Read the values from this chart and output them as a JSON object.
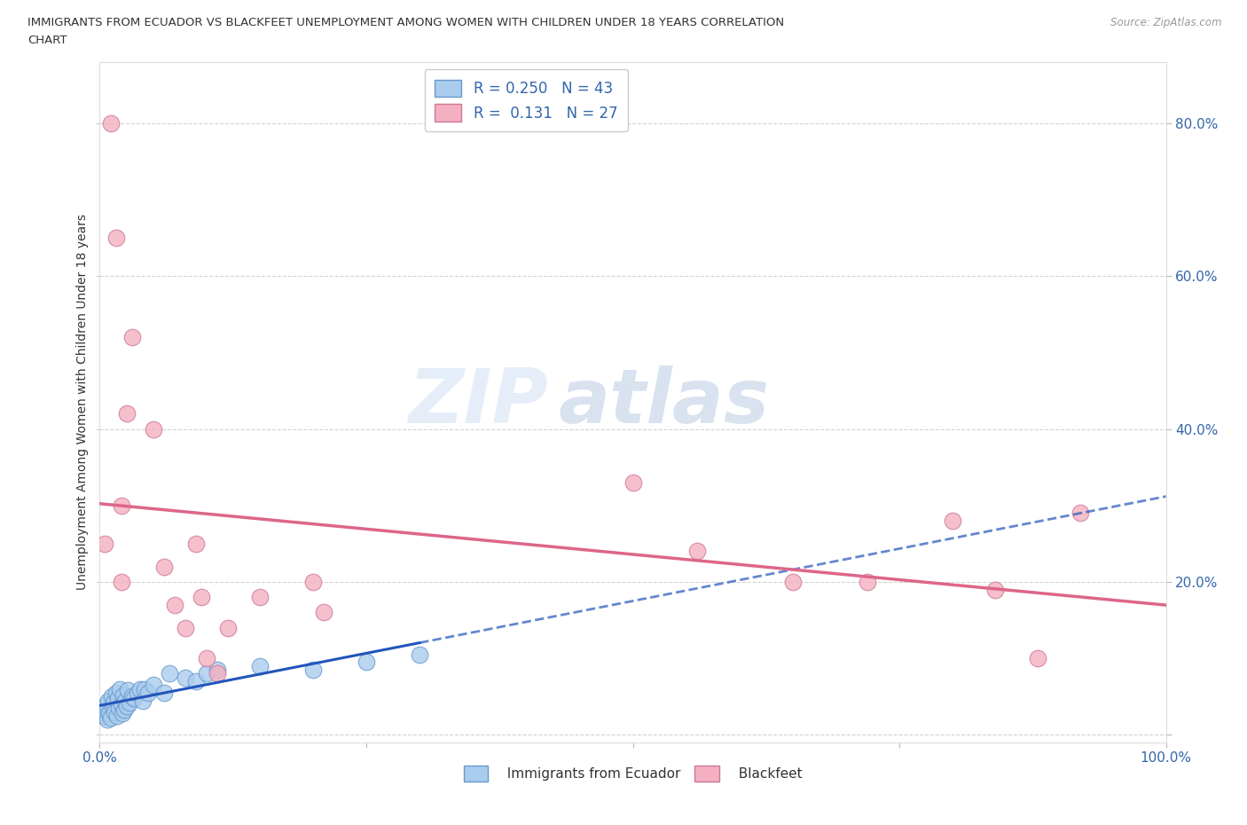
{
  "title_line1": "IMMIGRANTS FROM ECUADOR VS BLACKFEET UNEMPLOYMENT AMONG WOMEN WITH CHILDREN UNDER 18 YEARS CORRELATION",
  "title_line2": "CHART",
  "source": "Source: ZipAtlas.com",
  "ylabel": "Unemployment Among Women with Children Under 18 years",
  "xlim": [
    0.0,
    1.0
  ],
  "ylim": [
    -0.01,
    0.88
  ],
  "background_color": "#ffffff",
  "grid_color": "#cccccc",
  "ecuador_color": "#aaccee",
  "blackfeet_color": "#f4b0c0",
  "ecuador_line_color": "#2255bb",
  "blackfeet_line_color": "#dd6688",
  "R_ecuador": 0.25,
  "N_ecuador": 43,
  "R_blackfeet": 0.131,
  "N_blackfeet": 27,
  "ecuador_x": [
    0.004,
    0.005,
    0.006,
    0.006,
    0.007,
    0.008,
    0.009,
    0.01,
    0.011,
    0.012,
    0.013,
    0.014,
    0.015,
    0.016,
    0.017,
    0.018,
    0.019,
    0.02,
    0.021,
    0.022,
    0.023,
    0.024,
    0.025,
    0.026,
    0.028,
    0.03,
    0.032,
    0.035,
    0.038,
    0.04,
    0.042,
    0.045,
    0.05,
    0.06,
    0.065,
    0.08,
    0.09,
    0.1,
    0.11,
    0.15,
    0.2,
    0.25,
    0.3
  ],
  "ecuador_y": [
    0.025,
    0.03,
    0.035,
    0.04,
    0.02,
    0.045,
    0.028,
    0.022,
    0.05,
    0.038,
    0.042,
    0.03,
    0.055,
    0.025,
    0.048,
    0.035,
    0.06,
    0.04,
    0.028,
    0.052,
    0.033,
    0.045,
    0.038,
    0.058,
    0.042,
    0.05,
    0.048,
    0.055,
    0.06,
    0.045,
    0.06,
    0.055,
    0.065,
    0.055,
    0.08,
    0.075,
    0.07,
    0.08,
    0.085,
    0.09,
    0.085,
    0.095,
    0.105
  ],
  "blackfeet_x": [
    0.005,
    0.01,
    0.015,
    0.02,
    0.02,
    0.025,
    0.03,
    0.05,
    0.06,
    0.07,
    0.08,
    0.09,
    0.095,
    0.1,
    0.11,
    0.12,
    0.15,
    0.2,
    0.21,
    0.5,
    0.56,
    0.65,
    0.72,
    0.8,
    0.84,
    0.88,
    0.92
  ],
  "blackfeet_y": [
    0.25,
    0.8,
    0.65,
    0.2,
    0.3,
    0.42,
    0.52,
    0.4,
    0.22,
    0.17,
    0.14,
    0.25,
    0.18,
    0.1,
    0.08,
    0.14,
    0.18,
    0.2,
    0.16,
    0.33,
    0.24,
    0.2,
    0.2,
    0.28,
    0.19,
    0.1,
    0.29
  ],
  "watermark_zip": "ZIP",
  "watermark_atlas": "atlas",
  "title_color": "#333333",
  "axis_label_color": "#3366aa",
  "tick_color": "#3366aa",
  "source_color": "#999999"
}
